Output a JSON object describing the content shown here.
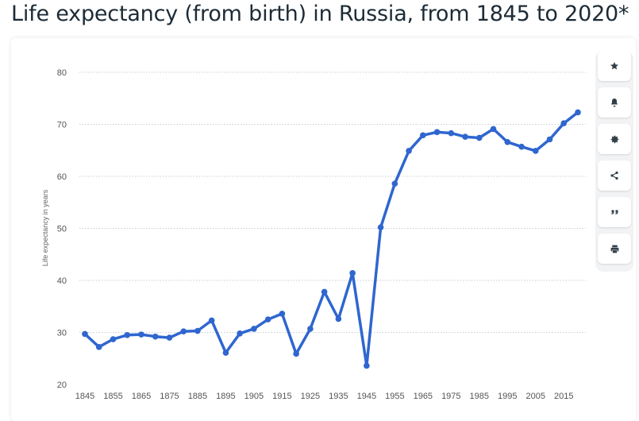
{
  "page": {
    "title": "Life expectancy (from birth) in Russia, from 1845 to 2020*"
  },
  "toolbar": {
    "buttons": [
      {
        "icon": "star-icon"
      },
      {
        "icon": "bell-icon"
      },
      {
        "icon": "gear-icon"
      },
      {
        "icon": "share-icon"
      },
      {
        "icon": "quote-icon"
      },
      {
        "icon": "print-icon"
      }
    ]
  },
  "colors": {
    "line": "#2f66cf",
    "grid": "#c9ced3",
    "tick_text": "#555555",
    "toolbar_icon": "#333f48"
  },
  "chart_data": {
    "type": "line",
    "ylabel": "Life expectancy in years",
    "xlabel": "",
    "ylim": [
      20,
      80
    ],
    "yticks": [
      20,
      30,
      40,
      50,
      60,
      70,
      80
    ],
    "xticks": [
      1845,
      1855,
      1865,
      1875,
      1885,
      1895,
      1905,
      1915,
      1925,
      1935,
      1945,
      1955,
      1965,
      1975,
      1985,
      1995,
      2005,
      2015
    ],
    "grid": true,
    "x": [
      1845,
      1850,
      1855,
      1860,
      1865,
      1870,
      1875,
      1880,
      1885,
      1890,
      1895,
      1900,
      1905,
      1910,
      1915,
      1920,
      1925,
      1930,
      1935,
      1940,
      1945,
      1950,
      1955,
      1960,
      1965,
      1970,
      1975,
      1980,
      1985,
      1990,
      1995,
      2000,
      2005,
      2010,
      2015,
      2020
    ],
    "series": [
      {
        "values": [
          29.7,
          27.2,
          28.7,
          29.5,
          29.6,
          29.2,
          29.0,
          30.2,
          30.3,
          32.3,
          26.1,
          29.8,
          30.7,
          32.5,
          33.6,
          25.9,
          30.7,
          37.8,
          32.6,
          41.4,
          23.6,
          50.2,
          58.6,
          64.9,
          67.9,
          68.5,
          68.3,
          67.6,
          67.4,
          69.1,
          66.6,
          65.7,
          64.9,
          67.1,
          70.2,
          72.3
        ]
      }
    ]
  }
}
